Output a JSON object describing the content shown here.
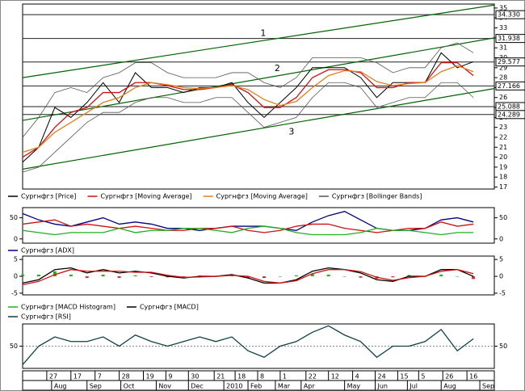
{
  "chart_data": [
    {
      "type": "line",
      "x": [
        0,
        10,
        20,
        30,
        40,
        50,
        60,
        70,
        80,
        90,
        100,
        110,
        120,
        130,
        140,
        150,
        160,
        170,
        180,
        190,
        200,
        210,
        220,
        230,
        240,
        250,
        260,
        270,
        280
      ],
      "series": [
        {
          "name": "Сургнфгз [Price]",
          "color": "#000000",
          "values": [
            19.5,
            21,
            25,
            24,
            25.5,
            27.5,
            25.5,
            28.5,
            27,
            27,
            26.5,
            27,
            27,
            27.5,
            25.5,
            24,
            25.5,
            27,
            29,
            29,
            29,
            28,
            26,
            27.5,
            27.5,
            27.5,
            30.5,
            29,
            29.6
          ]
        },
        {
          "name": "Сургнфгз [Moving Average]",
          "color": "#d01010",
          "values": [
            20,
            21,
            23,
            24.5,
            25,
            26.5,
            26.5,
            27.5,
            27.5,
            27.2,
            26.8,
            26.8,
            27,
            27.3,
            26.5,
            25,
            25,
            26,
            28,
            28.8,
            28.8,
            28.5,
            27,
            27,
            27.5,
            27.5,
            29.5,
            29.5,
            28.2
          ]
        },
        {
          "name": "Сургнфгз [Moving Average]",
          "color": "#e08020",
          "values": [
            20.5,
            21,
            22.5,
            23.5,
            24.5,
            25.5,
            26,
            27,
            27.5,
            27.3,
            27,
            26.9,
            27,
            27.2,
            26.8,
            25.8,
            25.2,
            25.6,
            27,
            28.2,
            28.7,
            28.6,
            27.6,
            27.2,
            27.4,
            27.5,
            28.6,
            29.2,
            28.6
          ]
        },
        {
          "name": "Сургнфгз [Bollinger Bands]",
          "color": "#555555",
          "type": "band",
          "upper": [
            22,
            24,
            26.5,
            27,
            26.5,
            28,
            28.5,
            29.5,
            29.5,
            28.5,
            28,
            28,
            28,
            28.5,
            28.5,
            27.5,
            27,
            28,
            30,
            30,
            30,
            30,
            29.5,
            28.5,
            29,
            29,
            31,
            31.5,
            30.5
          ],
          "lower": [
            18.5,
            19,
            20.5,
            22,
            23.5,
            24.5,
            24.5,
            25.5,
            26,
            26,
            25.5,
            25.5,
            26,
            26,
            24.5,
            23,
            23.5,
            24,
            26,
            27.5,
            27.5,
            27,
            25,
            25.5,
            26,
            26,
            27.5,
            27.5,
            26
          ]
        }
      ],
      "trend_lines": [
        {
          "label": "1",
          "color": "#006400",
          "x": [
            0,
            293
          ],
          "values": [
            28,
            35.3
          ]
        },
        {
          "label": "2",
          "color": "#006400",
          "x": [
            0,
            293
          ],
          "values": [
            23.7,
            32
          ]
        },
        {
          "label": "3",
          "color": "#006400",
          "x": [
            0,
            293
          ],
          "values": [
            18.8,
            26.9
          ]
        }
      ],
      "levels": [
        {
          "value": 34.33,
          "label": "34.330"
        },
        31.938,
        29.577,
        27.166,
        25.088,
        24.289
      ],
      "xlim": [
        0,
        293
      ],
      "ylim": [
        16.8,
        35.4
      ],
      "yticks": [
        17,
        18,
        19,
        20,
        21,
        22,
        23,
        24,
        25,
        26,
        27,
        28,
        29,
        30,
        31,
        32,
        33,
        34,
        35
      ],
      "ytick_side": "right"
    },
    {
      "type": "line",
      "x": [
        0,
        10,
        20,
        30,
        40,
        50,
        60,
        70,
        80,
        90,
        100,
        110,
        120,
        130,
        140,
        150,
        160,
        170,
        180,
        190,
        200,
        210,
        220,
        230,
        240,
        250,
        260,
        270,
        280
      ],
      "series": [
        {
          "name": "Сургнфгз [ADX]",
          "color": "#000080",
          "values": [
            60,
            45,
            35,
            30,
            40,
            50,
            35,
            40,
            35,
            25,
            25,
            20,
            25,
            30,
            30,
            30,
            25,
            20,
            40,
            55,
            65,
            45,
            25,
            20,
            20,
            25,
            45,
            50,
            40
          ]
        },
        {
          "color": "#d01010",
          "values": [
            35,
            40,
            45,
            30,
            35,
            30,
            25,
            30,
            25,
            20,
            20,
            25,
            25,
            30,
            20,
            15,
            20,
            30,
            35,
            35,
            25,
            20,
            15,
            20,
            25,
            25,
            40,
            30,
            35
          ]
        },
        {
          "color": "#20b020",
          "values": [
            20,
            15,
            10,
            15,
            15,
            15,
            25,
            15,
            20,
            20,
            25,
            25,
            20,
            15,
            25,
            30,
            25,
            15,
            10,
            10,
            10,
            15,
            25,
            20,
            20,
            15,
            10,
            15,
            15
          ]
        }
      ],
      "xlim": [
        0,
        293
      ],
      "ylim": [
        -10,
        74
      ],
      "yticks": [
        0,
        50
      ],
      "ytick_side": "both"
    },
    {
      "type": "line",
      "x": [
        0,
        10,
        20,
        30,
        40,
        50,
        60,
        70,
        80,
        90,
        100,
        110,
        120,
        130,
        140,
        150,
        160,
        170,
        180,
        190,
        200,
        210,
        220,
        230,
        240,
        250,
        260,
        270,
        280
      ],
      "series": [
        {
          "name": "Сургнфгз [MACD Histogram]",
          "type": "bar",
          "color": "#20b020",
          "negative_color": "#d03030",
          "values": [
            0.5,
            0.5,
            1.5,
            0.5,
            -0.5,
            0.5,
            -0.5,
            0.3,
            -0.2,
            -0.3,
            -0.2,
            0.2,
            0,
            0.2,
            -0.5,
            -0.5,
            0,
            0.3,
            0.7,
            0.5,
            0,
            -0.4,
            -0.7,
            -0.3,
            0.4,
            0,
            0.5,
            0,
            -0.8
          ]
        },
        {
          "name": "Сургнфгз [MACD]",
          "color": "#000000",
          "values": [
            -2,
            -1,
            2,
            2.5,
            1,
            2,
            1,
            1.5,
            1,
            0,
            -0.5,
            0,
            0,
            0.5,
            -0.5,
            -2,
            -2,
            -1,
            1.5,
            2.5,
            2,
            1,
            -1,
            -1.5,
            0,
            0,
            2,
            2,
            0
          ]
        },
        {
          "color": "#d01010",
          "values": [
            -2.5,
            -1.5,
            0.5,
            2,
            1.5,
            1.5,
            1.5,
            1.2,
            1.2,
            0.3,
            -0.3,
            -0.2,
            0,
            0.3,
            0,
            -1.5,
            -2,
            -1.3,
            0.8,
            2,
            2,
            1.4,
            -0.3,
            -1.2,
            -0.4,
            0,
            1.5,
            2,
            0.8
          ]
        }
      ],
      "xlim": [
        0,
        293
      ],
      "ylim": [
        -5.5,
        6
      ],
      "yticks": [
        -5,
        0,
        5
      ],
      "ytick_side": "both"
    },
    {
      "type": "line",
      "x": [
        0,
        10,
        20,
        30,
        40,
        50,
        60,
        70,
        80,
        90,
        100,
        110,
        120,
        130,
        140,
        150,
        160,
        170,
        180,
        190,
        200,
        210,
        220,
        230,
        240,
        250,
        260,
        270,
        280
      ],
      "series": [
        {
          "name": "Сургнфгз [RSI]",
          "color": "#104040",
          "values": [
            30,
            50,
            60,
            55,
            55,
            60,
            50,
            62,
            55,
            50,
            55,
            60,
            55,
            60,
            45,
            38,
            50,
            55,
            65,
            72,
            62,
            55,
            38,
            50,
            50,
            55,
            68,
            45,
            58
          ]
        }
      ],
      "xlim": [
        0,
        293
      ],
      "ylim": [
        26,
        74
      ],
      "yticks": [
        50
      ],
      "ytick_side": "both",
      "grid": true,
      "xticks": [
        {
          "value": 15,
          "label": "27"
        },
        {
          "value": 30,
          "label": "17"
        },
        {
          "value": 45,
          "label": "7"
        },
        {
          "value": 60,
          "label": "28"
        },
        {
          "value": 75,
          "label": "19"
        },
        {
          "value": 89,
          "label": "9"
        },
        {
          "value": 103,
          "label": "30"
        },
        {
          "value": 119,
          "label": "21"
        },
        {
          "value": 132,
          "label": "18"
        },
        {
          "value": 146,
          "label": "8"
        },
        {
          "value": 160,
          "label": "1"
        },
        {
          "value": 176,
          "label": "22"
        },
        {
          "value": 190,
          "label": "12"
        },
        {
          "value": 205,
          "label": "4"
        },
        {
          "value": 219,
          "label": "24"
        },
        {
          "value": 233,
          "label": "15"
        },
        {
          "value": 246,
          "label": "5"
        },
        {
          "value": 261,
          "label": "26"
        },
        {
          "value": 276,
          "label": "16"
        }
      ],
      "month_ticks": [
        {
          "value": 18,
          "label": "Aug"
        },
        {
          "value": 40,
          "label": "Sep"
        },
        {
          "value": 61,
          "label": "Oct"
        },
        {
          "value": 83,
          "label": "Nov"
        },
        {
          "value": 103,
          "label": "Dec"
        },
        {
          "value": 125,
          "label": "2010"
        },
        {
          "value": 140,
          "label": "Feb"
        },
        {
          "value": 157,
          "label": "Mar"
        },
        {
          "value": 173,
          "label": "Apr"
        },
        {
          "value": 200,
          "label": "May"
        },
        {
          "value": 219,
          "label": "Jun"
        },
        {
          "value": 239,
          "label": "Jul"
        },
        {
          "value": 260,
          "label": "Aug"
        },
        {
          "value": 284,
          "label": "Sep"
        }
      ]
    }
  ]
}
